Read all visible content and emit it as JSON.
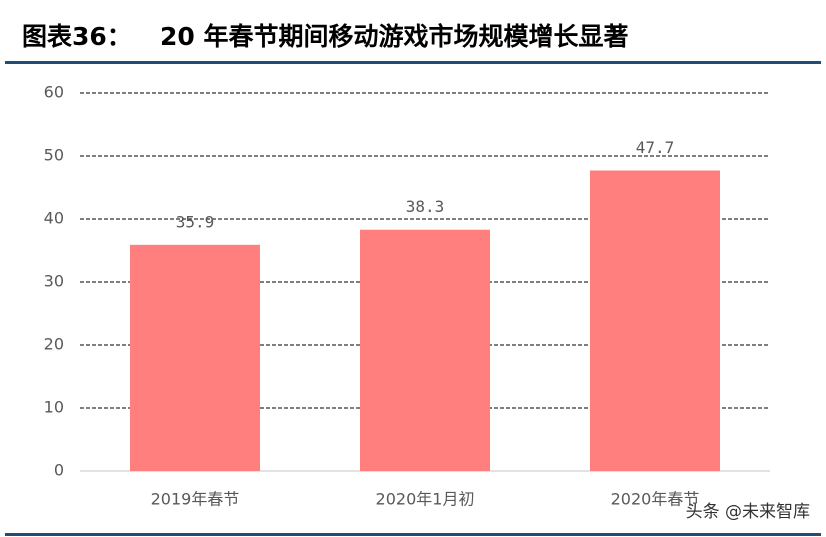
{
  "chart_data": {
    "type": "bar",
    "figure_label": "图表36：",
    "title": "20 年春节期间移动游戏市场规模增长显著",
    "categories": [
      "2019年春节",
      "2020年1月初",
      "2020年春节"
    ],
    "values": [
      35.9,
      38.3,
      47.7
    ],
    "color": "#ff7f7f",
    "ylim": [
      0,
      60
    ],
    "yticks": [
      0,
      10,
      20,
      30,
      40,
      50,
      60
    ],
    "grid": true
  },
  "watermark": "头条 @未来智库"
}
